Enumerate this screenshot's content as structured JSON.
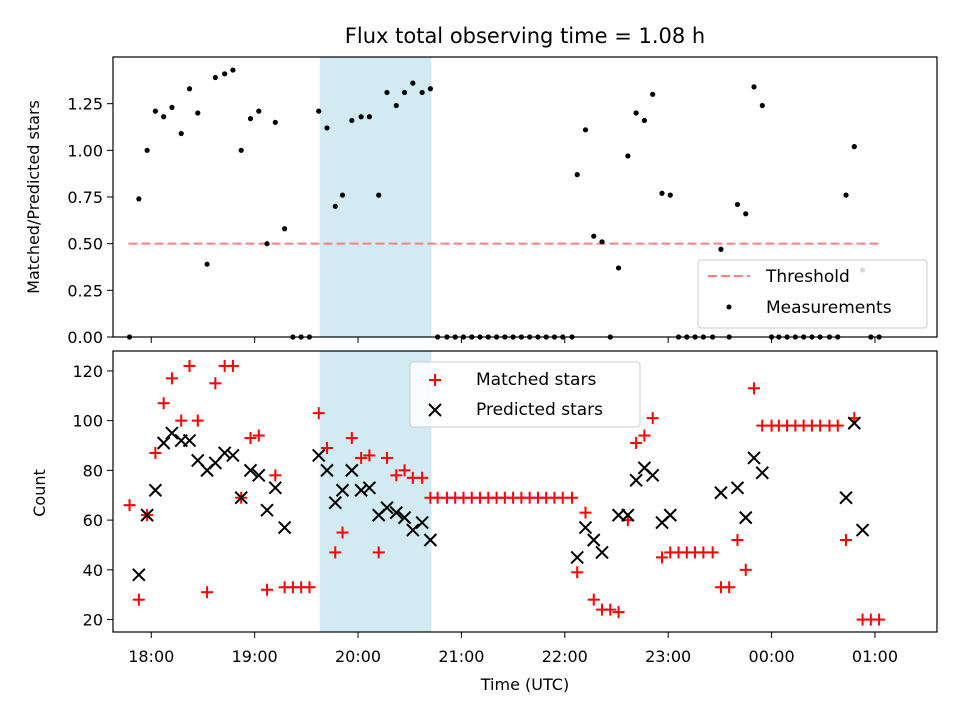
{
  "chart_data": [
    {
      "type": "scatter",
      "title": "Flux total observing time = 1.08 h",
      "xlabel": "",
      "ylabel": "Matched/Predicted stars",
      "xlim": [
        -0.37,
        7.6
      ],
      "ylim": [
        0,
        1.5
      ],
      "y_ticks": [
        "0.00",
        "0.25",
        "0.50",
        "0.75",
        "1.00",
        "1.25"
      ],
      "legend": {
        "position": "lower-right",
        "entries": [
          "Threshold",
          "Measurements"
        ]
      },
      "threshold": {
        "name": "Threshold",
        "value": 0.5,
        "x_range": [
          -0.22,
          7.04
        ],
        "color": "#ff7f7f",
        "style": "dashed"
      },
      "highlight_span": [
        1.63,
        2.71
      ],
      "series": [
        {
          "name": "Measurements",
          "marker": "dot",
          "color": "#000000",
          "points": [
            [
              -0.21,
              0
            ],
            [
              -0.12,
              0.74
            ],
            [
              -0.04,
              1.0
            ],
            [
              0.04,
              1.21
            ],
            [
              0.12,
              1.18
            ],
            [
              0.2,
              1.23
            ],
            [
              0.29,
              1.09
            ],
            [
              0.37,
              1.33
            ],
            [
              0.45,
              1.2
            ],
            [
              0.54,
              0.39
            ],
            [
              0.62,
              1.39
            ],
            [
              0.71,
              1.41
            ],
            [
              0.79,
              1.43
            ],
            [
              0.87,
              1.0
            ],
            [
              0.96,
              1.17
            ],
            [
              1.04,
              1.21
            ],
            [
              1.12,
              0.5
            ],
            [
              1.2,
              1.15
            ],
            [
              1.29,
              0.58
            ],
            [
              1.37,
              0
            ],
            [
              1.45,
              0
            ],
            [
              1.53,
              0
            ],
            [
              1.62,
              1.21
            ],
            [
              1.7,
              1.12
            ],
            [
              1.78,
              0.7
            ],
            [
              1.85,
              0.76
            ],
            [
              1.94,
              1.16
            ],
            [
              2.03,
              1.18
            ],
            [
              2.11,
              1.18
            ],
            [
              2.2,
              0.76
            ],
            [
              2.28,
              1.31
            ],
            [
              2.37,
              1.24
            ],
            [
              2.45,
              1.31
            ],
            [
              2.53,
              1.36
            ],
            [
              2.62,
              1.31
            ],
            [
              2.7,
              1.33
            ],
            [
              2.77,
              0
            ],
            [
              2.86,
              0
            ],
            [
              2.94,
              0
            ],
            [
              3.02,
              0
            ],
            [
              3.1,
              0
            ],
            [
              3.18,
              0
            ],
            [
              3.26,
              0
            ],
            [
              3.34,
              0
            ],
            [
              3.42,
              0
            ],
            [
              3.5,
              0
            ],
            [
              3.58,
              0
            ],
            [
              3.66,
              0
            ],
            [
              3.74,
              0
            ],
            [
              3.82,
              0
            ],
            [
              3.9,
              0
            ],
            [
              3.98,
              0
            ],
            [
              4.07,
              0
            ],
            [
              4.12,
              0.87
            ],
            [
              4.2,
              1.11
            ],
            [
              4.28,
              0.54
            ],
            [
              4.36,
              0.51
            ],
            [
              4.44,
              0
            ],
            [
              4.52,
              0.37
            ],
            [
              4.61,
              0.97
            ],
            [
              4.69,
              1.2
            ],
            [
              4.77,
              1.16
            ],
            [
              4.85,
              1.3
            ],
            [
              4.94,
              0.77
            ],
            [
              5.02,
              0.76
            ],
            [
              5.1,
              0
            ],
            [
              5.18,
              0
            ],
            [
              5.26,
              0
            ],
            [
              5.34,
              0
            ],
            [
              5.43,
              0
            ],
            [
              5.51,
              0.47
            ],
            [
              5.59,
              0
            ],
            [
              5.67,
              0.71
            ],
            [
              5.75,
              0.66
            ],
            [
              5.83,
              1.34
            ],
            [
              5.91,
              1.24
            ],
            [
              6.0,
              0
            ],
            [
              6.07,
              0
            ],
            [
              6.15,
              0
            ],
            [
              6.23,
              0
            ],
            [
              6.31,
              0
            ],
            [
              6.39,
              0
            ],
            [
              6.47,
              0
            ],
            [
              6.56,
              0
            ],
            [
              6.64,
              0
            ],
            [
              6.72,
              0.76
            ],
            [
              6.8,
              1.02
            ],
            [
              6.88,
              0.36
            ],
            [
              6.96,
              0
            ],
            [
              7.04,
              0
            ]
          ]
        }
      ]
    },
    {
      "type": "scatter",
      "title": "",
      "xlabel": "Time (UTC)",
      "ylabel": "Count",
      "xlim": [
        -0.37,
        7.6
      ],
      "ylim": [
        15,
        128
      ],
      "x_ticks": [
        "18:00",
        "19:00",
        "20:00",
        "21:00",
        "22:00",
        "23:00",
        "00:00",
        "01:00"
      ],
      "y_ticks": [
        "20",
        "40",
        "60",
        "80",
        "100",
        "120"
      ],
      "legend": {
        "position": "top-center",
        "entries": [
          "Matched stars",
          "Predicted stars"
        ]
      },
      "highlight_span": [
        1.63,
        2.71
      ],
      "series": [
        {
          "name": "Matched stars",
          "marker": "plus",
          "color": "#ff0000",
          "points": [
            [
              -0.21,
              66
            ],
            [
              -0.12,
              28
            ],
            [
              -0.04,
              62
            ],
            [
              0.04,
              87
            ],
            [
              0.12,
              107
            ],
            [
              0.2,
              117
            ],
            [
              0.29,
              100
            ],
            [
              0.37,
              122
            ],
            [
              0.45,
              100
            ],
            [
              0.54,
              31
            ],
            [
              0.62,
              115
            ],
            [
              0.71,
              122
            ],
            [
              0.79,
              122
            ],
            [
              0.87,
              69
            ],
            [
              0.96,
              93
            ],
            [
              1.04,
              94
            ],
            [
              1.12,
              32
            ],
            [
              1.2,
              78
            ],
            [
              1.29,
              33
            ],
            [
              1.37,
              33
            ],
            [
              1.45,
              33
            ],
            [
              1.53,
              33
            ],
            [
              1.62,
              103
            ],
            [
              1.7,
              89
            ],
            [
              1.78,
              47
            ],
            [
              1.85,
              55
            ],
            [
              1.94,
              93
            ],
            [
              2.03,
              85
            ],
            [
              2.11,
              86
            ],
            [
              2.2,
              47
            ],
            [
              2.28,
              85
            ],
            [
              2.37,
              78
            ],
            [
              2.45,
              80
            ],
            [
              2.53,
              77
            ],
            [
              2.62,
              77
            ],
            [
              2.7,
              69
            ],
            [
              2.77,
              69
            ],
            [
              2.86,
              69
            ],
            [
              2.94,
              69
            ],
            [
              3.02,
              69
            ],
            [
              3.1,
              69
            ],
            [
              3.18,
              69
            ],
            [
              3.26,
              69
            ],
            [
              3.34,
              69
            ],
            [
              3.42,
              69
            ],
            [
              3.5,
              69
            ],
            [
              3.58,
              69
            ],
            [
              3.66,
              69
            ],
            [
              3.74,
              69
            ],
            [
              3.82,
              69
            ],
            [
              3.9,
              69
            ],
            [
              3.98,
              69
            ],
            [
              4.07,
              69
            ],
            [
              4.12,
              39
            ],
            [
              4.2,
              63
            ],
            [
              4.28,
              28
            ],
            [
              4.36,
              24
            ],
            [
              4.44,
              24
            ],
            [
              4.52,
              23
            ],
            [
              4.61,
              60
            ],
            [
              4.69,
              91
            ],
            [
              4.77,
              94
            ],
            [
              4.85,
              101
            ],
            [
              4.94,
              45
            ],
            [
              5.02,
              47
            ],
            [
              5.1,
              47
            ],
            [
              5.18,
              47
            ],
            [
              5.26,
              47
            ],
            [
              5.34,
              47
            ],
            [
              5.43,
              47
            ],
            [
              5.51,
              33
            ],
            [
              5.59,
              33
            ],
            [
              5.67,
              52
            ],
            [
              5.75,
              40
            ],
            [
              5.83,
              113
            ],
            [
              5.91,
              98
            ],
            [
              6.0,
              98
            ],
            [
              6.07,
              98
            ],
            [
              6.15,
              98
            ],
            [
              6.23,
              98
            ],
            [
              6.31,
              98
            ],
            [
              6.39,
              98
            ],
            [
              6.47,
              98
            ],
            [
              6.56,
              98
            ],
            [
              6.64,
              98
            ],
            [
              6.72,
              52
            ],
            [
              6.8,
              101
            ],
            [
              6.88,
              20
            ],
            [
              6.96,
              20
            ],
            [
              7.04,
              20
            ]
          ]
        },
        {
          "name": "Predicted stars",
          "marker": "x",
          "color": "#000000",
          "points": [
            [
              -0.12,
              38
            ],
            [
              -0.04,
              62
            ],
            [
              0.04,
              72
            ],
            [
              0.12,
              91
            ],
            [
              0.2,
              95
            ],
            [
              0.29,
              92
            ],
            [
              0.37,
              92
            ],
            [
              0.45,
              84
            ],
            [
              0.54,
              80
            ],
            [
              0.62,
              83
            ],
            [
              0.71,
              87
            ],
            [
              0.79,
              86
            ],
            [
              0.87,
              69
            ],
            [
              0.96,
              80
            ],
            [
              1.04,
              78
            ],
            [
              1.12,
              64
            ],
            [
              1.2,
              73
            ],
            [
              1.29,
              57
            ],
            [
              1.62,
              86
            ],
            [
              1.7,
              80
            ],
            [
              1.78,
              67
            ],
            [
              1.85,
              72
            ],
            [
              1.94,
              80
            ],
            [
              2.03,
              72
            ],
            [
              2.11,
              73
            ],
            [
              2.2,
              62
            ],
            [
              2.28,
              65
            ],
            [
              2.37,
              63
            ],
            [
              2.45,
              61
            ],
            [
              2.53,
              56
            ],
            [
              2.62,
              59
            ],
            [
              2.7,
              52
            ],
            [
              4.12,
              45
            ],
            [
              4.2,
              57
            ],
            [
              4.28,
              52
            ],
            [
              4.36,
              47
            ],
            [
              4.52,
              62
            ],
            [
              4.61,
              62
            ],
            [
              4.69,
              76
            ],
            [
              4.77,
              81
            ],
            [
              4.85,
              78
            ],
            [
              4.94,
              59
            ],
            [
              5.02,
              62
            ],
            [
              5.51,
              71
            ],
            [
              5.67,
              73
            ],
            [
              5.75,
              61
            ],
            [
              5.83,
              85
            ],
            [
              5.91,
              79
            ],
            [
              6.72,
              69
            ],
            [
              6.8,
              99
            ],
            [
              6.88,
              56
            ]
          ]
        }
      ]
    }
  ],
  "colors": {
    "highlight": "#add8e6",
    "threshold": "#ff7f7f",
    "matched": "#ff0000",
    "predicted": "#000000",
    "measurement": "#000000"
  }
}
